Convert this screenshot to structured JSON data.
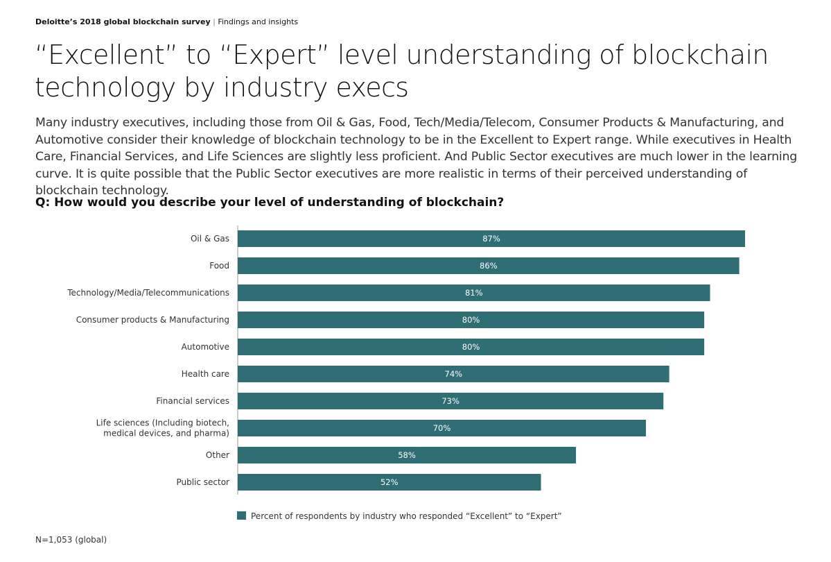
{
  "header": {
    "bold": "Deloitte’s 2018 global blockchain survey",
    "sep": "|",
    "rest": "Findings and insights"
  },
  "title": "“Excellent” to “Expert” level understanding of blockchain technology by industry execs",
  "description": "Many industry executives, including those from Oil & Gas, Food, Tech/Media/Telecom, Consumer Products & Manufacturing, and Automotive consider their knowledge of blockchain technology to be in the Excellent to Expert range. While executives in Health Care, Financial Services, and Life Sciences are slightly less proficient. And Public Sector executives are much lower in the learning curve. It is quite possible that the Public Sector executives are more realistic in terms of their perceived understanding of blockchain technology.",
  "question": "Q: How would you describe your level of understanding of blockchain?",
  "footnote": "N=1,053 (global)",
  "chart_data": {
    "type": "bar",
    "orientation": "horizontal",
    "categories": [
      "Oil & Gas",
      "Food",
      "Technology/Media/Telecommunications",
      "Consumer products & Manufacturing",
      "Automotive",
      "Health care",
      "Financial services",
      "Life sciences (Including biotech,\nmedical devices, and pharma)",
      "Other",
      "Public sector"
    ],
    "values": [
      87,
      86,
      81,
      80,
      80,
      74,
      73,
      70,
      58,
      52
    ],
    "data_labels": [
      "87%",
      "86%",
      "81%",
      "80%",
      "80%",
      "74%",
      "73%",
      "70%",
      "58%",
      "52%"
    ],
    "series": [
      {
        "name": "Percent of respondents by industry who responded “Excellent” to “Expert”"
      }
    ],
    "unit": "%",
    "legend": "bottom",
    "grid": false,
    "color": "#2f6e74"
  }
}
